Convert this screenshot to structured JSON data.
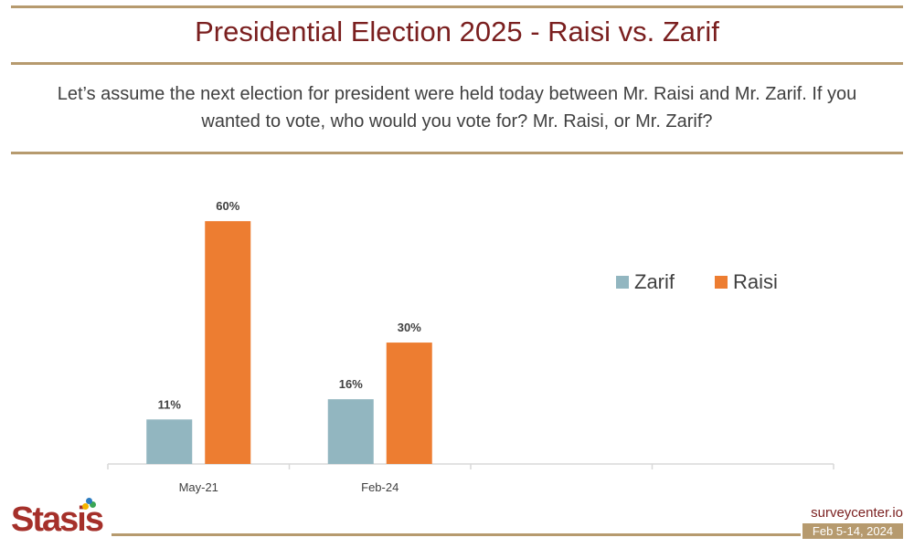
{
  "header": {
    "title": "Presidential Election 2025 - Raisi vs. Zarif",
    "question": "Let’s assume the next election for president were held today between Mr. Raisi and Mr. Zarif. If you wanted to vote, who would you vote for? Mr. Raisi, or Mr. Zarif?"
  },
  "colors": {
    "title": "#7a1f1f",
    "rule": "#b69a6e",
    "zarif": "#92b6c0",
    "raisi": "#ed7d31"
  },
  "chart_data": {
    "type": "bar",
    "categories": [
      "May-21",
      "Feb-24",
      "",
      ""
    ],
    "series": [
      {
        "name": "Zarif",
        "values": [
          11,
          16,
          null,
          null
        ],
        "labels": [
          "11%",
          "16%",
          "",
          ""
        ]
      },
      {
        "name": "Raisi",
        "values": [
          60,
          30,
          null,
          null
        ],
        "labels": [
          "60%",
          "30%",
          "",
          ""
        ]
      }
    ],
    "ylim": [
      0,
      65
    ],
    "grid": false,
    "legend_position": "right"
  },
  "footer": {
    "logo": "Stasis",
    "site": "surveycenter.io",
    "date": "Feb 5-14, 2024"
  }
}
